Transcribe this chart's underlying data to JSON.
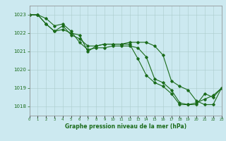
{
  "bg_color": "#cce9f0",
  "line_color": "#1a6b1a",
  "grid_color": "#aacccc",
  "x": [
    0,
    1,
    2,
    3,
    4,
    5,
    6,
    7,
    8,
    9,
    10,
    11,
    12,
    13,
    14,
    15,
    16,
    17,
    18,
    19,
    20,
    21,
    22,
    23
  ],
  "series1": [
    1023.0,
    1023.0,
    1022.8,
    1022.4,
    1022.5,
    1022.1,
    1021.5,
    1021.1,
    1021.2,
    1021.2,
    1021.3,
    1021.3,
    1021.3,
    1021.2,
    1020.7,
    1019.5,
    1019.3,
    1018.9,
    1018.2,
    1018.1,
    1018.2,
    1018.4,
    1018.6,
    1019.0
  ],
  "series2": [
    1023.0,
    1023.0,
    1022.5,
    1022.1,
    1022.2,
    1022.0,
    1021.9,
    1021.0,
    1021.3,
    1021.4,
    1021.4,
    1021.4,
    1021.4,
    1020.6,
    1019.7,
    1019.3,
    1019.1,
    1018.7,
    1018.1,
    1018.1,
    1018.1,
    1018.7,
    1018.5,
    1019.0
  ],
  "series3": [
    1023.0,
    1023.0,
    1022.5,
    1022.1,
    1022.4,
    1021.9,
    1021.7,
    1021.3,
    1021.3,
    1021.4,
    1021.4,
    1021.4,
    1021.5,
    1021.5,
    1021.5,
    1021.3,
    1020.8,
    1019.4,
    1019.1,
    1018.9,
    1018.3,
    1018.1,
    1018.1,
    1019.0
  ],
  "ylim": [
    1017.5,
    1023.5
  ],
  "yticks": [
    1018,
    1019,
    1020,
    1021,
    1022,
    1023
  ],
  "xlim": [
    0,
    23
  ],
  "xlabel": "Graphe pression niveau de la mer (hPa)"
}
